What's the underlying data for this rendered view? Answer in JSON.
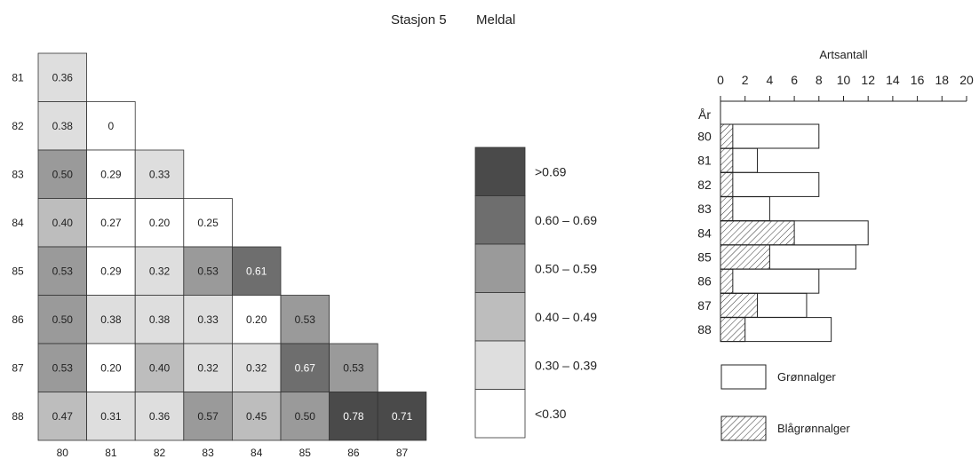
{
  "header": {
    "station": "Stasjon 5",
    "location": "Meldal"
  },
  "chart_data": [
    {
      "type": "heatmap",
      "row_labels": [
        "81",
        "82",
        "83",
        "84",
        "85",
        "86",
        "87",
        "88"
      ],
      "col_labels": [
        "80",
        "81",
        "82",
        "83",
        "84",
        "85",
        "86",
        "87"
      ],
      "values": [
        [
          "0.36"
        ],
        [
          "0.38",
          "0"
        ],
        [
          "0.50",
          "0.29",
          "0.33"
        ],
        [
          "0.40",
          "0.27",
          "0.20",
          "0.25"
        ],
        [
          "0.53",
          "0.29",
          "0.32",
          "0.53",
          "0.61"
        ],
        [
          "0.50",
          "0.38",
          "0.38",
          "0.33",
          "0.20",
          "0.53"
        ],
        [
          "0.53",
          "0.20",
          "0.40",
          "0.32",
          "0.32",
          "0.67",
          "0.53"
        ],
        [
          "0.47",
          "0.31",
          "0.36",
          "0.57",
          "0.45",
          "0.50",
          "0.78",
          "0.71"
        ]
      ],
      "legend": [
        {
          "label": ">0.69",
          "color": "#4a4a4a"
        },
        {
          "label": "0.60 – 0.69",
          "color": "#6e6e6e"
        },
        {
          "label": "0.50 – 0.59",
          "color": "#9a9a9a"
        },
        {
          "label": "0.40 – 0.49",
          "color": "#bdbdbd"
        },
        {
          "label": "0.30 – 0.39",
          "color": "#dedede"
        },
        {
          "label": "<0.30",
          "color": "#ffffff"
        }
      ]
    },
    {
      "type": "bar",
      "orientation": "horizontal",
      "stacked": "overlaid",
      "title": "Artsantall",
      "ylabel": "År",
      "xlim": [
        0,
        20
      ],
      "x_ticks": [
        "0",
        "2",
        "4",
        "6",
        "8",
        "10",
        "12",
        "14",
        "16",
        "18",
        "20"
      ],
      "categories": [
        "80",
        "81",
        "82",
        "83",
        "84",
        "85",
        "86",
        "87",
        "88"
      ],
      "series": [
        {
          "name": "Grønnalger",
          "values": [
            8,
            3,
            8,
            4,
            12,
            11,
            8,
            7,
            9
          ],
          "pattern": "plain"
        },
        {
          "name": "Blågrønnalger",
          "values": [
            1,
            1,
            1,
            1,
            6,
            4,
            1,
            3,
            2
          ],
          "pattern": "hatched"
        }
      ]
    }
  ]
}
